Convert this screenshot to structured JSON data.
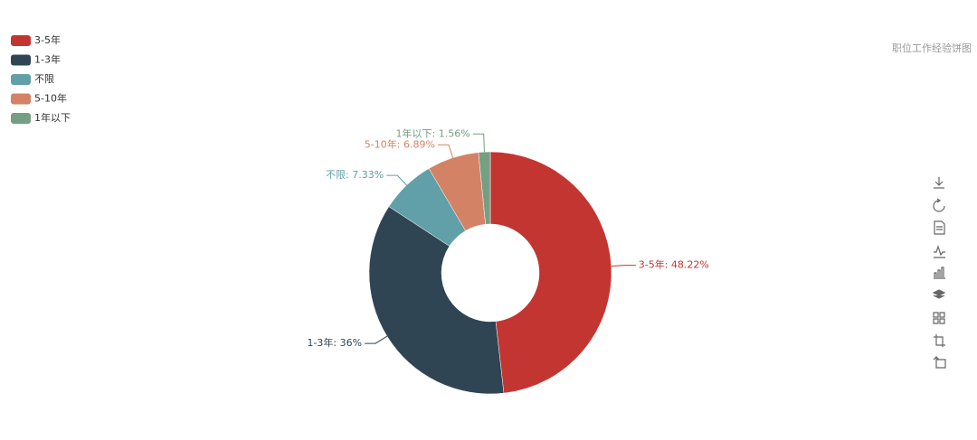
{
  "chart_data": {
    "type": "pie",
    "title": "职位工作经验饼图",
    "categories": [
      "3-5年",
      "1-3年",
      "不限",
      "5-10年",
      "1年以下"
    ],
    "values": [
      48.22,
      36,
      7.33,
      6.89,
      1.56
    ],
    "value_labels": [
      "3-5年: 48.22%",
      "1-3年: 36%",
      "不限: 7.33%",
      "5-10年: 6.89%",
      "1年以下: 1.56%"
    ],
    "colors": [
      "#c23531",
      "#2f4554",
      "#61a0a8",
      "#d48265",
      "#749f83"
    ],
    "legend": "top-left"
  }
}
